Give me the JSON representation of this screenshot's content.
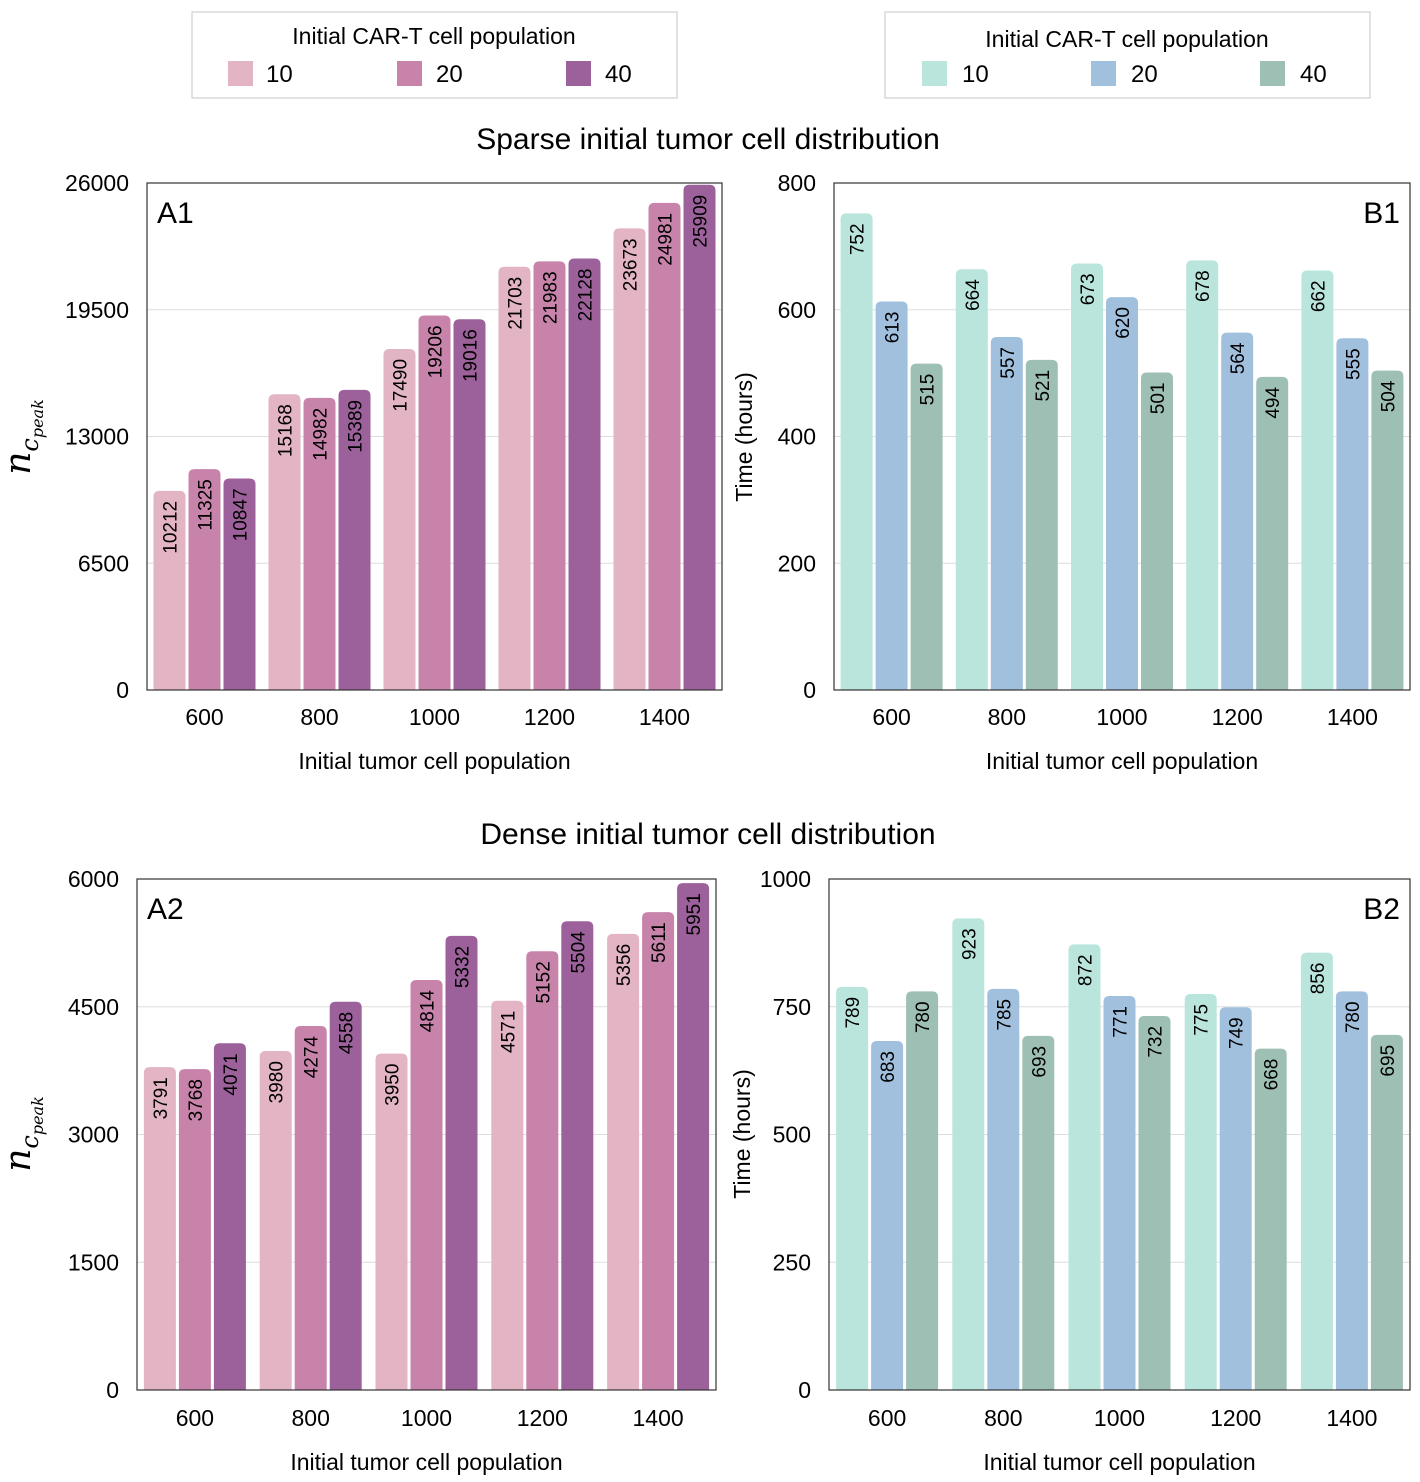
{
  "figure": {
    "section_titles": {
      "sparse": "Sparse initial tumor cell distribution",
      "dense": "Dense initial tumor cell distribution"
    },
    "legends": [
      {
        "title": "Initial CAR-T cell population",
        "entries": [
          {
            "label": "10",
            "color": "#e2b4c4"
          },
          {
            "label": "20",
            "color": "#c883aa"
          },
          {
            "label": "40",
            "color": "#9c619a"
          }
        ]
      },
      {
        "title": "Initial CAR-T cell population",
        "entries": [
          {
            "label": "10",
            "color": "#b9e5dc"
          },
          {
            "label": "20",
            "color": "#a1c0de"
          },
          {
            "label": "40",
            "color": "#9ebfb4"
          }
        ]
      }
    ]
  },
  "chart_data": [
    {
      "id": "A1",
      "panel_label": "A1",
      "type": "bar",
      "xlabel": "Initial tumor cell population",
      "ylabel": "n_c_peak",
      "ylabel_main": "n",
      "ylabel_sub": "c",
      "ylabel_subsub": "peak",
      "ylim": [
        0,
        26000
      ],
      "yticks": [
        "0",
        "6500",
        "13000",
        "19500",
        "26000"
      ],
      "categories": [
        "600",
        "800",
        "1000",
        "1200",
        "1400"
      ],
      "series": [
        {
          "name": "10",
          "color": "#e2b4c4",
          "values": [
            10212,
            15168,
            17490,
            21703,
            23673
          ]
        },
        {
          "name": "20",
          "color": "#c883aa",
          "values": [
            11325,
            14982,
            19206,
            21983,
            24981
          ]
        },
        {
          "name": "40",
          "color": "#9c619a",
          "values": [
            10847,
            15389,
            19016,
            22128,
            25909
          ]
        }
      ]
    },
    {
      "id": "B1",
      "panel_label": "B1",
      "type": "bar",
      "xlabel": "Initial tumor cell population",
      "ylabel": "Time (hours)",
      "ylim": [
        0,
        800
      ],
      "yticks": [
        "0",
        "200",
        "400",
        "600",
        "800"
      ],
      "categories": [
        "600",
        "800",
        "1000",
        "1200",
        "1400"
      ],
      "series": [
        {
          "name": "10",
          "color": "#b9e5dc",
          "values": [
            752,
            664,
            673,
            678,
            662
          ]
        },
        {
          "name": "20",
          "color": "#a1c0de",
          "values": [
            613,
            557,
            620,
            564,
            555
          ]
        },
        {
          "name": "40",
          "color": "#9ebfb4",
          "values": [
            515,
            521,
            501,
            494,
            504
          ]
        }
      ]
    },
    {
      "id": "A2",
      "panel_label": "A2",
      "type": "bar",
      "xlabel": "Initial tumor cell population",
      "ylabel": "n_c_peak",
      "ylabel_main": "n",
      "ylabel_sub": "c",
      "ylabel_subsub": "peak",
      "ylim": [
        0,
        6000
      ],
      "yticks": [
        "0",
        "1500",
        "3000",
        "4500",
        "6000"
      ],
      "categories": [
        "600",
        "800",
        "1000",
        "1200",
        "1400"
      ],
      "series": [
        {
          "name": "10",
          "color": "#e2b4c4",
          "values": [
            3791,
            3980,
            3950,
            4571,
            5356
          ]
        },
        {
          "name": "20",
          "color": "#c883aa",
          "values": [
            3768,
            4274,
            4814,
            5152,
            5611
          ]
        },
        {
          "name": "40",
          "color": "#9c619a",
          "values": [
            4071,
            4558,
            5332,
            5504,
            5951
          ]
        }
      ]
    },
    {
      "id": "B2",
      "panel_label": "B2",
      "type": "bar",
      "xlabel": "Initial tumor cell population",
      "ylabel": "Time (hours)",
      "ylim": [
        0,
        1000
      ],
      "yticks": [
        "0",
        "250",
        "500",
        "750",
        "1000"
      ],
      "categories": [
        "600",
        "800",
        "1000",
        "1200",
        "1400"
      ],
      "series": [
        {
          "name": "10",
          "color": "#b9e5dc",
          "values": [
            789,
            923,
            872,
            775,
            856
          ]
        },
        {
          "name": "20",
          "color": "#a1c0de",
          "values": [
            683,
            785,
            771,
            749,
            780
          ]
        },
        {
          "name": "40",
          "color": "#9ebfb4",
          "values": [
            780,
            693,
            732,
            668,
            695
          ]
        }
      ]
    }
  ]
}
